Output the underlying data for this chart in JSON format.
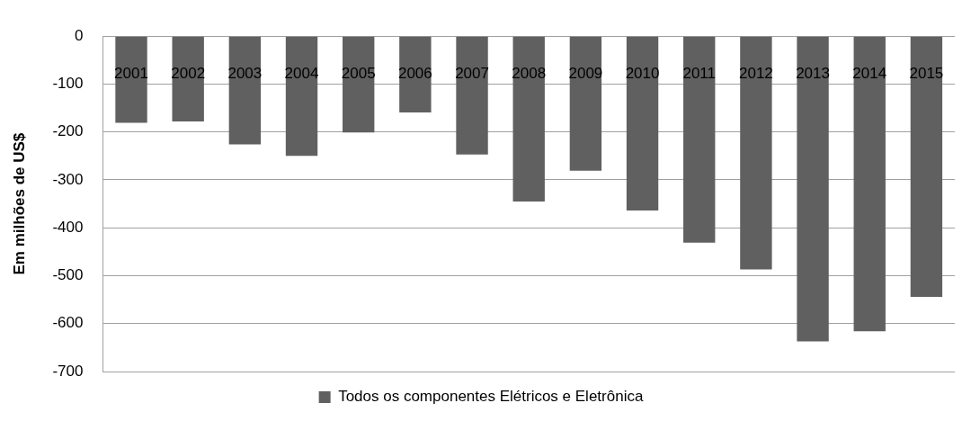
{
  "chart_data": {
    "type": "bar",
    "ylabel": "Em milhões de US$",
    "categories": [
      "2001",
      "2002",
      "2003",
      "2004",
      "2005",
      "2006",
      "2007",
      "2008",
      "2009",
      "2010",
      "2011",
      "2012",
      "2013",
      "2014",
      "2015"
    ],
    "series": [
      {
        "name": "Todos os componentes Elétricos e Eletrônica",
        "color": "#606060",
        "values": [
          -181,
          -178,
          -226,
          -250,
          -201,
          -159,
          -247,
          -345,
          -281,
          -364,
          -431,
          -487,
          -637,
          -616,
          -544
        ]
      }
    ],
    "ylim": [
      -700,
      0
    ],
    "yticks": [
      0,
      -100,
      -200,
      -300,
      -400,
      -500,
      -600,
      -700
    ],
    "grid": "y",
    "legend": "bottom"
  }
}
